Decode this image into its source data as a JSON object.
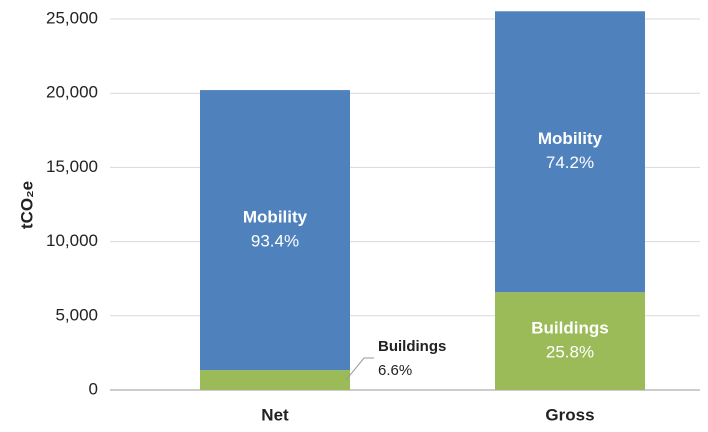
{
  "chart_data": {
    "type": "stacked_bar",
    "y_label": "tCO₂e",
    "categories": [
      "Net",
      "Gross"
    ],
    "series": [
      {
        "name": "Buildings",
        "color": "#9bbb59",
        "values": [
          1340,
          6590
        ],
        "labels": [
          "6.6%",
          "25.8%"
        ]
      },
      {
        "name": "Mobility",
        "color": "#4f81bd",
        "values": [
          18870,
          18930
        ],
        "labels": [
          "93.4%",
          "74.2%"
        ]
      }
    ],
    "ylim": [
      0,
      25000
    ],
    "yticks": [
      {
        "value": 0,
        "label": "0"
      },
      {
        "value": 5000,
        "label": "5,000"
      },
      {
        "value": 10000,
        "label": "10,000"
      },
      {
        "value": 15000,
        "label": "15,000"
      },
      {
        "value": 20000,
        "label": "20,000"
      },
      {
        "value": 25000,
        "label": "25,000"
      }
    ],
    "grid": true
  }
}
